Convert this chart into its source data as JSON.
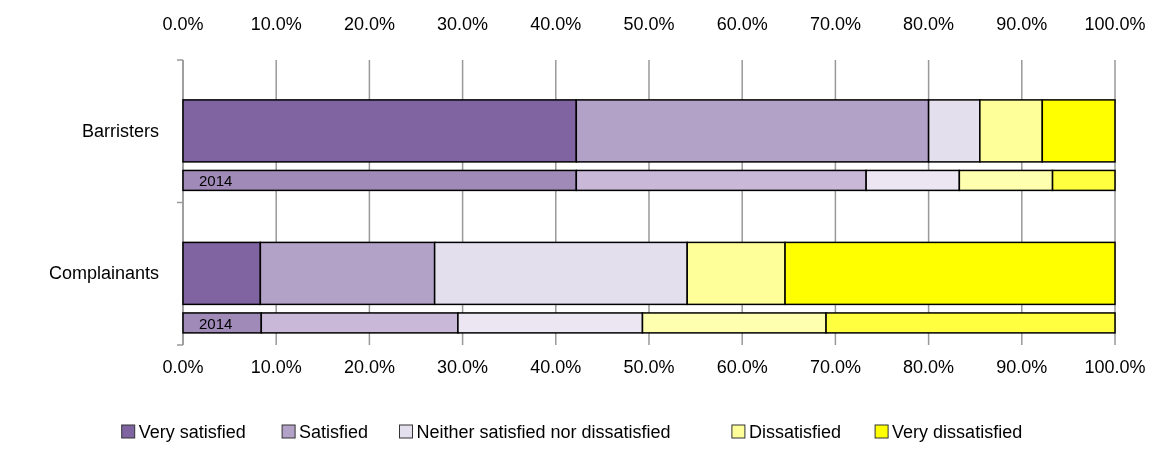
{
  "chart_data": {
    "type": "bar",
    "orientation": "horizontal",
    "stacked": true,
    "categories": [
      "Barristers",
      "2014",
      "Complainants",
      "2014"
    ],
    "series": [
      {
        "name": "Very satisfied",
        "color": "#8064a2",
        "colors": [
          "#8064a2",
          "#a08ab8",
          "#8064a2",
          "#a08ab8"
        ],
        "values": [
          42.2,
          42.2,
          8.3,
          8.4
        ]
      },
      {
        "name": "Satisfied",
        "color": "#b3a2c7",
        "colors": [
          "#b3a2c7",
          "#c9b8d8",
          "#b3a2c7",
          "#c9b8d8"
        ],
        "values": [
          37.8,
          31.1,
          18.7,
          21.1
        ]
      },
      {
        "name": "Neither satisfied nor dissatisfied",
        "color": "#e4dfec",
        "colors": [
          "#e4dfec",
          "#ece6f2",
          "#e4dfec",
          "#ece6f2"
        ],
        "values": [
          5.5,
          10.0,
          27.1,
          19.8
        ]
      },
      {
        "name": "Dissatisfied",
        "color": "#ffff99",
        "colors": [
          "#ffff99",
          "#ffffb0",
          "#ffff99",
          "#ffffb0"
        ],
        "values": [
          6.7,
          10.0,
          10.5,
          19.7
        ]
      },
      {
        "name": "Very dissatisfied",
        "color": "#ffff00",
        "colors": [
          "#ffff00",
          "#ffff40",
          "#ffff00",
          "#ffff40"
        ],
        "values": [
          7.8,
          6.7,
          35.4,
          31.0
        ]
      }
    ],
    "xlim": [
      0,
      100
    ],
    "xticks": [
      {
        "value": 0,
        "label": "0.0%"
      },
      {
        "value": 10,
        "label": "10.0%"
      },
      {
        "value": 20,
        "label": "20.0%"
      },
      {
        "value": 30,
        "label": "30.0%"
      },
      {
        "value": 40,
        "label": "40.0%"
      },
      {
        "value": 50,
        "label": "50.0%"
      },
      {
        "value": 60,
        "label": "60.0%"
      },
      {
        "value": 70,
        "label": "70.0%"
      },
      {
        "value": 80,
        "label": "80.0%"
      },
      {
        "value": 90,
        "label": "90.0%"
      },
      {
        "value": 100,
        "label": "100.0%"
      }
    ],
    "x2lim": [
      0,
      100
    ],
    "x2ticks": [
      {
        "value": 0,
        "label": "0.0%"
      },
      {
        "value": 10,
        "label": "10.0%"
      },
      {
        "value": 20,
        "label": "20.0%"
      },
      {
        "value": 30,
        "label": "30.0%"
      },
      {
        "value": 40,
        "label": "40.0%"
      },
      {
        "value": 50,
        "label": "50.0%"
      },
      {
        "value": 60,
        "label": "60.0%"
      },
      {
        "value": 70,
        "label": "70.0%"
      },
      {
        "value": 80,
        "label": "80.0%"
      },
      {
        "value": 90,
        "label": "90.0%"
      },
      {
        "value": 100,
        "label": "100.0%"
      }
    ],
    "grid": "x",
    "legend": "bottom"
  }
}
